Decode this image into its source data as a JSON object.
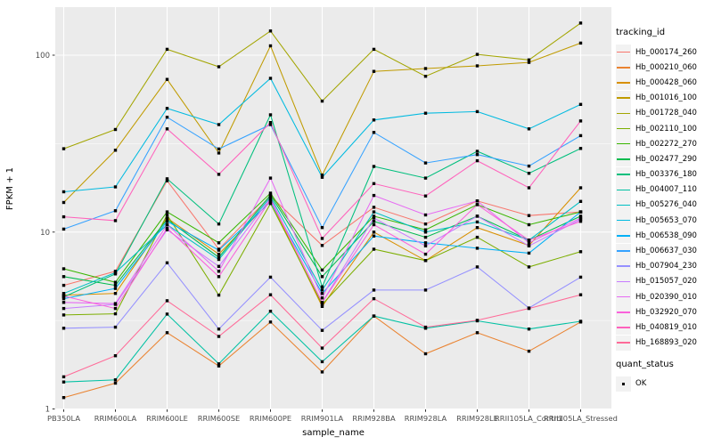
{
  "chart_data": {
    "type": "line",
    "title": "",
    "xlabel": "sample_name",
    "ylabel": "FPKM + 1",
    "y_scale": "log10",
    "y_ticks": [
      1,
      10,
      100
    ],
    "y_minor_gridlines": [
      3.162,
      31.623
    ],
    "ylim": [
      1,
      185
    ],
    "grid": "on",
    "legend_position": "right",
    "categories": [
      "PB350LA",
      "RRIM600LA",
      "RRIM600LE",
      "RRIM600SE",
      "RRIM600PE",
      "RRIM901LA",
      "RRIM928BA",
      "RRIM928LA",
      "RRIM928LE",
      "RRII105LA_Control",
      "RRII105LA_Stressed"
    ],
    "series": [
      {
        "id": "Hb_000174_260",
        "color": "#F8766D",
        "values": [
          5.0,
          6.0,
          19.5,
          8.0,
          16.0,
          8.4,
          13.8,
          11.1,
          15.0,
          12.4,
          13.0
        ]
      },
      {
        "id": "Hb_000210_060",
        "color": "#EA8331",
        "values": [
          1.16,
          1.4,
          2.7,
          1.75,
          3.1,
          1.62,
          3.35,
          2.05,
          2.7,
          2.12,
          3.1
        ]
      },
      {
        "id": "Hb_000428_060",
        "color": "#D89000",
        "values": [
          4.4,
          4.5,
          12.0,
          7.5,
          15.0,
          3.8,
          10.0,
          6.9,
          10.6,
          8.4,
          17.8
        ]
      },
      {
        "id": "Hb_001016_100",
        "color": "#C09B00",
        "values": [
          14.7,
          29,
          73,
          28,
          113,
          21,
          81,
          84,
          87,
          91,
          117
        ]
      },
      {
        "id": "Hb_001728_040",
        "color": "#A3A500",
        "values": [
          29.6,
          38,
          108,
          86,
          137,
          55,
          108,
          76,
          101,
          94,
          152
        ]
      },
      {
        "id": "Hb_002110_100",
        "color": "#7CAE00",
        "values": [
          3.4,
          3.45,
          12.5,
          4.4,
          14.5,
          3.9,
          8.0,
          6.9,
          9.35,
          6.35,
          7.75
        ]
      },
      {
        "id": "Hb_002272_270",
        "color": "#39B600",
        "values": [
          6.2,
          5.2,
          13.0,
          8.7,
          16.6,
          6.1,
          12.3,
          10.3,
          14.3,
          11.0,
          13.0
        ]
      },
      {
        "id": "Hb_002477_290",
        "color": "#00BB4E",
        "values": [
          5.6,
          5.0,
          11.8,
          7.2,
          16.2,
          5.6,
          11.5,
          9.35,
          12.3,
          9.0,
          12.3
        ]
      },
      {
        "id": "Hb_003376_180",
        "color": "#00BF7D",
        "values": [
          4.3,
          5.8,
          20.0,
          11.1,
          46.0,
          4.9,
          23.5,
          20.2,
          28.6,
          21.5,
          29.7
        ]
      },
      {
        "id": "Hb_004007_110",
        "color": "#00C1A3",
        "values": [
          1.42,
          1.46,
          3.44,
          1.8,
          3.57,
          1.85,
          3.35,
          2.86,
          3.15,
          2.83,
          3.13
        ]
      },
      {
        "id": "Hb_005276_040",
        "color": "#00BFC4",
        "values": [
          4.5,
          5.9,
          11.0,
          7.0,
          15.8,
          4.7,
          13.0,
          10.0,
          11.4,
          9.0,
          14.9
        ]
      },
      {
        "id": "Hb_005653_070",
        "color": "#00BAE0",
        "values": [
          16.9,
          18,
          50,
          40.5,
          74,
          20.4,
          43,
          47,
          48,
          38.3,
          52.7
        ]
      },
      {
        "id": "Hb_006538_090",
        "color": "#00B0F6",
        "values": [
          4.2,
          4.8,
          11.5,
          7.9,
          14.8,
          4.5,
          9.5,
          8.7,
          8.1,
          7.6,
          13.0
        ]
      },
      {
        "id": "Hb_006637_030",
        "color": "#35A2FF",
        "values": [
          10.4,
          13.2,
          44.6,
          29.5,
          40.5,
          10.6,
          36.6,
          24.6,
          27.4,
          23.6,
          35.1
        ]
      },
      {
        "id": "Hb_007904_230",
        "color": "#9590FF",
        "values": [
          2.86,
          2.9,
          6.7,
          2.83,
          5.56,
          2.78,
          4.7,
          4.7,
          6.35,
          3.72,
          5.56
        ]
      },
      {
        "id": "Hb_015057_020",
        "color": "#C77CFF",
        "values": [
          3.7,
          3.9,
          10.3,
          6.4,
          15.5,
          4.0,
          12.0,
          8.35,
          12.3,
          8.35,
          11.8
        ]
      },
      {
        "id": "Hb_020390_010",
        "color": "#E76BF3",
        "values": [
          4.0,
          3.94,
          11.0,
          6.0,
          20.2,
          4.24,
          16.1,
          12.5,
          15.0,
          8.7,
          12.0
        ]
      },
      {
        "id": "Hb_032920_070",
        "color": "#FA62DB",
        "values": [
          4.35,
          3.7,
          10.5,
          5.6,
          15.2,
          4.0,
          11.0,
          7.5,
          14.3,
          9.0,
          11.5
        ]
      },
      {
        "id": "Hb_040819_010",
        "color": "#FF62BC",
        "values": [
          12.2,
          11.6,
          38.3,
          21.2,
          41.6,
          9.2,
          18.8,
          16.0,
          25.3,
          17.8,
          42.5
        ]
      },
      {
        "id": "Hb_168893_020",
        "color": "#FF6A98",
        "values": [
          1.52,
          2.0,
          4.09,
          2.57,
          4.42,
          2.21,
          4.2,
          2.9,
          3.17,
          3.7,
          4.42
        ]
      }
    ],
    "marker": {
      "shape": "filled-square",
      "color": "#000000"
    },
    "legend": {
      "tracking_title": "tracking_id",
      "quant_title": "quant_status",
      "quant_items": [
        {
          "label": "OK"
        }
      ]
    }
  },
  "style_colors": {
    "panel_bg": "#EBEBEB",
    "gridline": "#FFFFFF",
    "legend_key_bg": "#F2F2F2",
    "tick_label": "#4D4D4D",
    "tick_mark": "#333333",
    "text": "#000000"
  }
}
